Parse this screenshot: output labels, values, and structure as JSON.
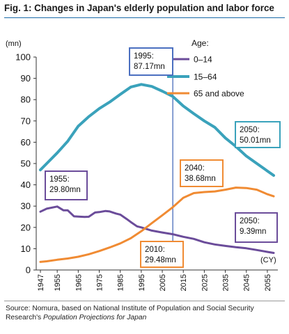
{
  "chart_data": {
    "type": "line",
    "title": "Fig. 1: Changes in Japan's elderly population and labor force",
    "ylabel": "(mn)",
    "xlabel": "(CY)",
    "ylim": [
      0,
      100
    ],
    "yticks": [
      0,
      10,
      20,
      30,
      40,
      50,
      60,
      70,
      80,
      90,
      100
    ],
    "xlim": [
      1945,
      2060
    ],
    "xticks": [
      1947,
      1955,
      1965,
      1975,
      1985,
      1995,
      2005,
      2015,
      2025,
      2035,
      2045,
      2055
    ],
    "legend_title": "Age:",
    "legend_position": "top-right",
    "grid": false,
    "reference_line_x": 2010,
    "series": [
      {
        "name": "0–14",
        "color": "#6b4c9a",
        "x": [
          1947,
          1950,
          1955,
          1958,
          1960,
          1963,
          1965,
          1968,
          1970,
          1973,
          1975,
          1978,
          1980,
          1983,
          1985,
          1988,
          1990,
          1993,
          1995,
          2000,
          2005,
          2010,
          2015,
          2020,
          2025,
          2030,
          2035,
          2040,
          2045,
          2050,
          2055,
          2058
        ],
        "y": [
          27.4,
          28.8,
          29.8,
          28.0,
          28.0,
          25.2,
          25.1,
          24.9,
          25.0,
          27.0,
          27.2,
          27.7,
          27.5,
          26.5,
          26.0,
          24.0,
          22.5,
          20.5,
          20.0,
          18.5,
          17.6,
          16.8,
          15.6,
          14.6,
          13.0,
          12.0,
          11.3,
          10.7,
          10.2,
          9.39,
          8.5,
          8.0
        ]
      },
      {
        "name": "15–64",
        "color": "#3aa2bb",
        "x": [
          1947,
          1950,
          1955,
          1960,
          1965,
          1970,
          1975,
          1980,
          1985,
          1990,
          1995,
          2000,
          2005,
          2010,
          2015,
          2020,
          2025,
          2030,
          2035,
          2040,
          2045,
          2050,
          2055,
          2058
        ],
        "y": [
          47.0,
          50.0,
          55.0,
          60.5,
          67.5,
          72.0,
          75.8,
          78.9,
          82.5,
          85.9,
          87.17,
          86.2,
          84.0,
          81.5,
          77.0,
          73.4,
          70.0,
          67.0,
          62.0,
          58.0,
          53.5,
          50.01,
          46.5,
          44.4
        ]
      },
      {
        "name": "65 and above",
        "color": "#f08b33",
        "x": [
          1947,
          1950,
          1955,
          1960,
          1965,
          1970,
          1975,
          1980,
          1985,
          1990,
          1995,
          2000,
          2005,
          2010,
          2015,
          2020,
          2025,
          2030,
          2035,
          2040,
          2045,
          2050,
          2055,
          2058
        ],
        "y": [
          3.8,
          4.1,
          4.8,
          5.4,
          6.2,
          7.4,
          8.9,
          10.6,
          12.5,
          14.9,
          18.2,
          22.0,
          25.7,
          29.48,
          33.9,
          36.1,
          36.6,
          36.9,
          37.7,
          38.68,
          38.5,
          37.7,
          35.6,
          34.6
        ]
      }
    ],
    "annotations": [
      {
        "line1": "1995:",
        "line2": "87.17mn",
        "border_color": "#4a6fc0"
      },
      {
        "line1": "1955:",
        "line2": "29.80mn",
        "border_color": "#6b4c9a"
      },
      {
        "line1": "2040:",
        "line2": "38.68mn",
        "border_color": "#f08b33"
      },
      {
        "line1": "2050:",
        "line2": "50.01mn",
        "border_color": "#3aa2bb"
      },
      {
        "line1": "2050:",
        "line2": "9.39mn",
        "border_color": "#6b4c9a"
      },
      {
        "line1": "2010:",
        "line2": "29.48mn",
        "border_color": "#f08b33"
      }
    ]
  },
  "footer": {
    "source_prefix": "Source: Nomura, based on National Institute of Population and Social Security Research's ",
    "source_italic": "Population Projections for Japan"
  }
}
